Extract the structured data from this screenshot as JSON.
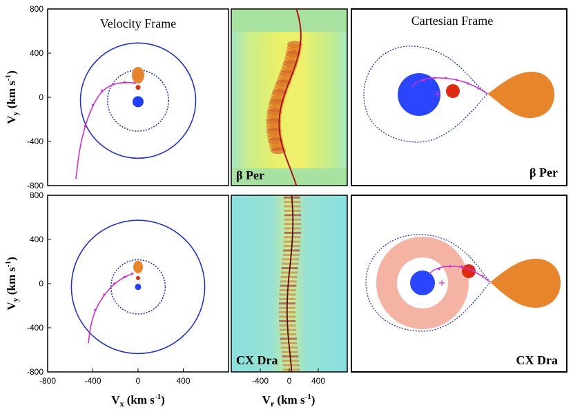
{
  "chart_data": {
    "type": "figure-grid",
    "axis_ticks": {
      "vy": [
        "800",
        "400",
        "0",
        "-400",
        "-800"
      ],
      "vx": [
        "-800",
        "-400",
        "0",
        "400"
      ],
      "vr": [
        "-400",
        "0",
        "400"
      ]
    },
    "axis_labels": {
      "vy": "V",
      "vy_sub": "y",
      "vy_units": " (km s",
      "vy_exp": "-1",
      "vy_close": ")",
      "vx": "V",
      "vx_sub": "x",
      "vx_units": " (km s",
      "vx_exp": "-1",
      "vx_close": ")",
      "vr": "V",
      "vr_sub": "r",
      "vr_units": " (km s",
      "vr_exp": "-1",
      "vr_close": ")"
    },
    "panel_titles": {
      "velocity": "Velocity Frame",
      "cartesian": "Cartesian Frame"
    },
    "systems": [
      {
        "name": "β Per",
        "velocity_frame": {
          "xlim": [
            -800,
            800
          ],
          "ylim": [
            -800,
            800
          ],
          "outer_circle": {
            "center": [
              0,
              -30
            ],
            "radius": 510
          },
          "inner_circle": {
            "center": [
              0,
              -30
            ],
            "radius": 270
          },
          "donor": {
            "x": 0,
            "y": 200,
            "color": "#e8842a"
          },
          "gainer": {
            "x": 0,
            "y": -40,
            "color": "#1f3fff"
          },
          "red_dot": {
            "x": 0,
            "y": 90,
            "color": "#dd2a10"
          },
          "stream": {
            "x": [
              -550,
              -520,
              -470,
              -400,
              -320,
              -220,
              -120,
              -30
            ],
            "y": [
              -740,
              -480,
              -260,
              -70,
              60,
              120,
              135,
              130
            ]
          }
        },
        "trailed_spectrum": {
          "vlim": [
            -800,
            800
          ],
          "rv_curve_amplitude": 150
        }
      },
      {
        "name": "CX Dra",
        "velocity_frame": {
          "xlim": [
            -800,
            800
          ],
          "ylim": [
            -800,
            800
          ],
          "outer_circle": {
            "center": [
              0,
              -30
            ],
            "radius": 590
          },
          "inner_circle": {
            "center": [
              0,
              -30
            ],
            "radius": 240
          },
          "donor": {
            "x": 0,
            "y": 150,
            "color": "#e8842a"
          },
          "gainer": {
            "x": 0,
            "y": -30,
            "color": "#1f3fff"
          },
          "red_dot": {
            "x": 0,
            "y": 50,
            "color": "#dd2a10"
          },
          "stream": {
            "x": [
              -440,
              -420,
              -380,
              -300,
              -210,
              -120,
              -50
            ],
            "y": [
              -540,
              -380,
              -240,
              -100,
              0,
              60,
              90
            ]
          }
        },
        "trailed_spectrum": {
          "vlim": [
            -800,
            800
          ],
          "rv_curve_amplitude": 40
        }
      }
    ],
    "colors": {
      "orbit": "#1f2fd6",
      "stream": "#d12dd1",
      "donor": "#e8842a",
      "gainer": "#1f3fff",
      "hotspot": "#dd2a10",
      "disk": "#f4b3a3",
      "rv_curve": "#b01010"
    }
  }
}
